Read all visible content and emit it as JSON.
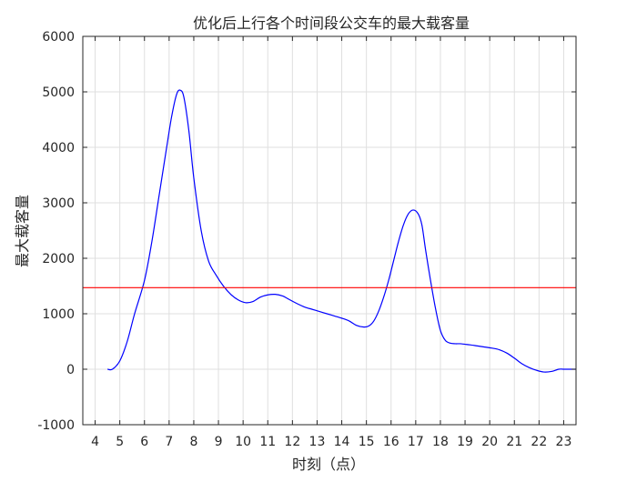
{
  "chart_data": {
    "type": "line",
    "title": "优化后上行各个时间段公交车的最大载客量",
    "xlabel": "时刻（点）",
    "ylabel": "最大载客量",
    "xlim": [
      3.5,
      23.5
    ],
    "ylim": [
      -1000,
      6000
    ],
    "xticks": [
      4,
      5,
      6,
      7,
      8,
      9,
      10,
      11,
      12,
      13,
      14,
      15,
      16,
      17,
      18,
      19,
      20,
      21,
      22,
      23
    ],
    "yticks": [
      -1000,
      0,
      1000,
      2000,
      3000,
      4000,
      5000,
      6000
    ],
    "grid": true,
    "series": [
      {
        "color": "#0000ff",
        "x": [
          4.5,
          4.7,
          5.0,
          5.3,
          5.6,
          6.0,
          6.3,
          6.6,
          6.9,
          7.1,
          7.3,
          7.45,
          7.6,
          7.8,
          8.0,
          8.3,
          8.6,
          8.9,
          9.2,
          9.5,
          9.8,
          10.1,
          10.4,
          10.7,
          11.0,
          11.3,
          11.6,
          11.9,
          12.2,
          12.5,
          12.8,
          13.1,
          13.4,
          13.7,
          14.0,
          14.3,
          14.6,
          14.9,
          15.1,
          15.3,
          15.5,
          15.7,
          15.9,
          16.1,
          16.3,
          16.5,
          16.7,
          16.9,
          17.1,
          17.25,
          17.4,
          17.6,
          17.8,
          18.0,
          18.2,
          18.4,
          18.6,
          18.8,
          19.0,
          19.2,
          19.5,
          19.8,
          20.1,
          20.4,
          20.7,
          21.0,
          21.3,
          21.6,
          21.9,
          22.2,
          22.5,
          22.8,
          23.0,
          23.2,
          23.5
        ],
        "y": [
          0,
          0,
          150,
          500,
          1000,
          1600,
          2300,
          3150,
          4000,
          4550,
          4950,
          5030,
          4900,
          4300,
          3450,
          2500,
          1950,
          1700,
          1500,
          1350,
          1250,
          1200,
          1220,
          1300,
          1340,
          1350,
          1320,
          1250,
          1180,
          1120,
          1080,
          1040,
          1000,
          960,
          920,
          870,
          790,
          760,
          780,
          870,
          1050,
          1300,
          1600,
          1950,
          2300,
          2600,
          2800,
          2870,
          2800,
          2600,
          2150,
          1600,
          1100,
          700,
          520,
          470,
          460,
          460,
          450,
          440,
          420,
          400,
          380,
          350,
          290,
          200,
          100,
          30,
          -20,
          -50,
          -40,
          0,
          0,
          0,
          0
        ]
      },
      {
        "color": "#ff0000",
        "x": [
          3.5,
          23.5
        ],
        "y": [
          1470,
          1470
        ]
      }
    ]
  }
}
